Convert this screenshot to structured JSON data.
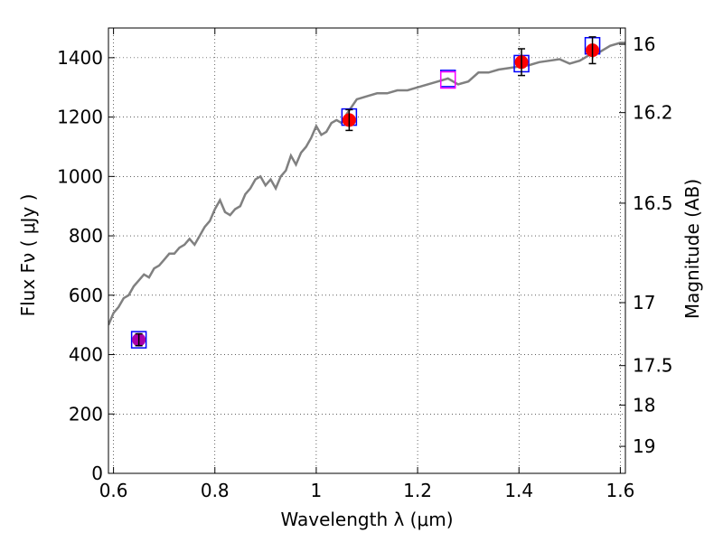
{
  "chart_data": {
    "type": "scatter",
    "title": "",
    "xlabel": "Wavelength  λ (μm)",
    "ylabel": "Flux  Fν  ( μJy )",
    "y2label": "Magnitude (AB)",
    "xlim": [
      0.59,
      1.61
    ],
    "ylim": [
      0,
      1500
    ],
    "grid": true,
    "x_ticks": [
      0.6,
      0.8,
      1.0,
      1.2,
      1.4,
      1.6
    ],
    "x_tick_labels": [
      "0.6",
      "0.8",
      "1",
      "1.2",
      "1.4",
      "1.6"
    ],
    "y_ticks": [
      0,
      200,
      400,
      600,
      800,
      1000,
      1200,
      1400
    ],
    "y_tick_labels": [
      "0",
      "200",
      "400",
      "600",
      "800",
      "1000",
      "1200",
      "1400"
    ],
    "y2_ticks": [
      {
        "flux": 1445,
        "label": "16"
      },
      {
        "flux": 1215,
        "label": "16.2"
      },
      {
        "flux": 910,
        "label": "16.5"
      },
      {
        "flux": 575,
        "label": "17"
      },
      {
        "flux": 363,
        "label": "17.5"
      },
      {
        "flux": 230,
        "label": "18"
      },
      {
        "flux": 91,
        "label": "19"
      }
    ],
    "series": [
      {
        "kind": "line",
        "color": "#808080",
        "x": [
          0.59,
          0.6,
          0.61,
          0.62,
          0.63,
          0.64,
          0.65,
          0.66,
          0.67,
          0.68,
          0.69,
          0.7,
          0.71,
          0.72,
          0.73,
          0.74,
          0.75,
          0.76,
          0.77,
          0.78,
          0.79,
          0.8,
          0.81,
          0.82,
          0.83,
          0.84,
          0.85,
          0.86,
          0.87,
          0.88,
          0.89,
          0.9,
          0.91,
          0.92,
          0.93,
          0.94,
          0.95,
          0.96,
          0.97,
          0.98,
          0.99,
          1.0,
          1.01,
          1.02,
          1.03,
          1.04,
          1.05,
          1.06,
          1.08,
          1.1,
          1.12,
          1.14,
          1.16,
          1.18,
          1.2,
          1.22,
          1.24,
          1.26,
          1.28,
          1.3,
          1.32,
          1.34,
          1.36,
          1.38,
          1.4,
          1.42,
          1.44,
          1.46,
          1.48,
          1.5,
          1.52,
          1.54,
          1.56,
          1.58,
          1.6,
          1.61
        ],
        "y": [
          500,
          540,
          560,
          590,
          600,
          630,
          650,
          670,
          660,
          690,
          700,
          720,
          740,
          740,
          760,
          770,
          790,
          770,
          800,
          830,
          850,
          890,
          920,
          880,
          870,
          890,
          900,
          940,
          960,
          990,
          1000,
          970,
          990,
          960,
          1000,
          1020,
          1070,
          1040,
          1080,
          1100,
          1130,
          1170,
          1140,
          1150,
          1180,
          1190,
          1180,
          1210,
          1260,
          1270,
          1280,
          1280,
          1290,
          1290,
          1300,
          1310,
          1320,
          1330,
          1310,
          1320,
          1350,
          1350,
          1360,
          1365,
          1370,
          1375,
          1385,
          1390,
          1395,
          1380,
          1390,
          1410,
          1420,
          1440,
          1450,
          1450
        ]
      },
      {
        "kind": "open-square",
        "color": "#0000ff",
        "x": [
          0.65,
          1.065,
          1.26,
          1.405,
          1.545
        ],
        "y": [
          450,
          1200,
          1330,
          1380,
          1440
        ]
      },
      {
        "kind": "filled-circle",
        "color": "#ff0000",
        "x": [
          1.065,
          1.405,
          1.545
        ],
        "y": [
          1190,
          1385,
          1425
        ],
        "yerr": [
          35,
          45,
          45
        ]
      },
      {
        "kind": "filled-circle",
        "color": "#aa00aa",
        "x": [
          0.65
        ],
        "y": [
          450
        ],
        "yerr": [
          20
        ]
      },
      {
        "kind": "open-square",
        "color": "#ff00ff",
        "x": [
          1.26
        ],
        "y": [
          1325
        ]
      }
    ]
  }
}
